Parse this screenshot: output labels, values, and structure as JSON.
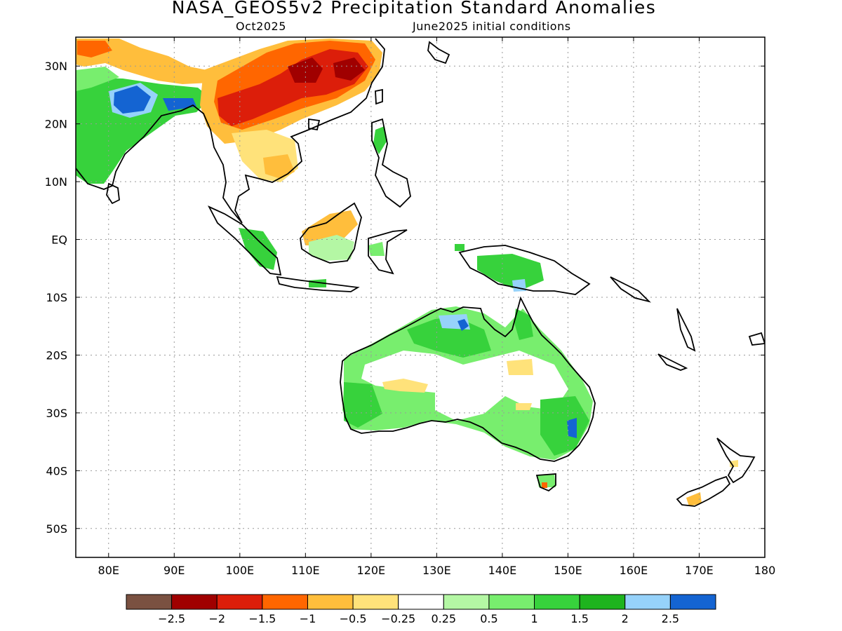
{
  "title": "NASA_GEOS5v2 Precipitation Standard Anomalies",
  "valid_month": "Oct2025",
  "init_conditions": "June2025 initial conditions",
  "map": {
    "lon_range": [
      75,
      180
    ],
    "lat_range": [
      -55,
      35
    ],
    "lon_labels": [
      "80E",
      "90E",
      "100E",
      "110E",
      "120E",
      "130E",
      "140E",
      "150E",
      "160E",
      "170E",
      "180"
    ],
    "lat_labels": [
      "30N",
      "20N",
      "10N",
      "EQ",
      "10S",
      "20S",
      "30S",
      "40S",
      "50S"
    ]
  },
  "colorbar": {
    "colors": [
      "#7a5141",
      "#a00000",
      "#dc1e0a",
      "#ff6600",
      "#ffbe3c",
      "#ffe27a",
      "#ffffff",
      "#b4f7a4",
      "#78ee6e",
      "#37d23c",
      "#1eb41e",
      "#96d2fa",
      "#1464d2"
    ],
    "labels": [
      "−2.5",
      "−2",
      "−1.5",
      "−1",
      "−0.5",
      "−0.25",
      "0.25",
      "0.5",
      "1",
      "1.5",
      "2",
      "2.5"
    ]
  }
}
